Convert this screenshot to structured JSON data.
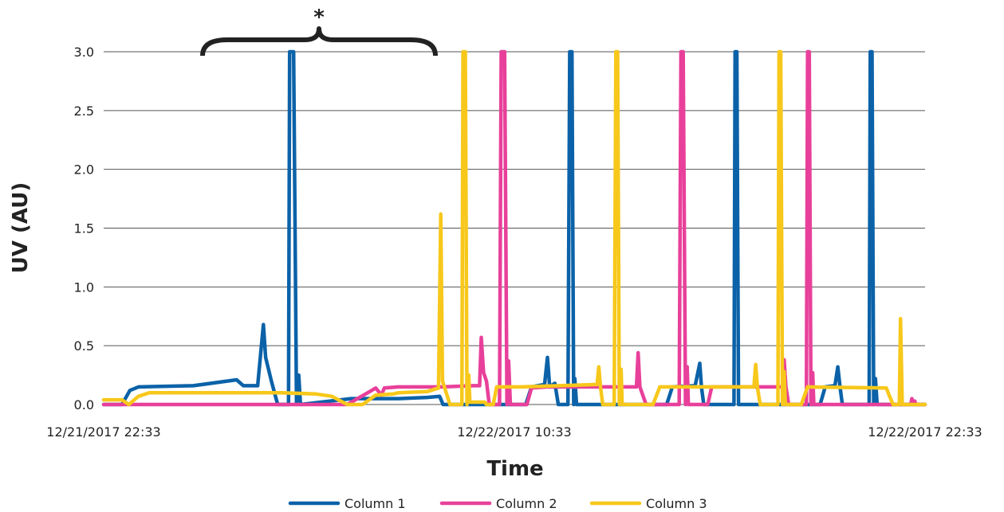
{
  "chart_data": {
    "type": "line",
    "xlabel": "Time",
    "ylabel": "UV (AU)",
    "ylim": [
      0,
      3.0
    ],
    "yticks": [
      "0.0",
      "0.5",
      "1.0",
      "1.5",
      "2.0",
      "2.5",
      "3.0"
    ],
    "xlim": [
      "12/21/2017 22:33",
      "12/22/2017 22:33"
    ],
    "xticks": [
      "12/21/2017 22:33",
      "12/22/2017 10:33",
      "12/22/2017 22:33"
    ],
    "grid": true,
    "legend_position": "bottom",
    "annotation": "*",
    "series": [
      {
        "name": "Column 1",
        "color": "#0b62a8",
        "points": [
          [
            "12/21/2017 22:33",
            0.0
          ],
          [
            "12/21/2017 23:05",
            0.0
          ],
          [
            "12/21/2017 23:19",
            0.12
          ],
          [
            "12/21/2017 23:34",
            0.15
          ],
          [
            "12/22/2017 01:10",
            0.16
          ],
          [
            "12/22/2017 02:26",
            0.21
          ],
          [
            "12/22/2017 02:38",
            0.16
          ],
          [
            "12/22/2017 03:03",
            0.16
          ],
          [
            "12/22/2017 03:13",
            0.68
          ],
          [
            "12/22/2017 03:17",
            0.4
          ],
          [
            "12/22/2017 03:27",
            0.2
          ],
          [
            "12/22/2017 03:38",
            0.0
          ],
          [
            "12/22/2017 03:57",
            0.0
          ],
          [
            "12/22/2017 03:59",
            3.0
          ],
          [
            "12/22/2017 04:06",
            3.0
          ],
          [
            "12/22/2017 04:11",
            0.0
          ],
          [
            "12/22/2017 04:15",
            0.25
          ],
          [
            "12/22/2017 04:18",
            0.0
          ],
          [
            "12/22/2017 05:11",
            0.03
          ],
          [
            "12/22/2017 05:47",
            0.05
          ],
          [
            "12/22/2017 07:10",
            0.05
          ],
          [
            "12/22/2017 08:00",
            0.06
          ],
          [
            "12/22/2017 08:22",
            0.07
          ],
          [
            "12/22/2017 08:28",
            0.0
          ],
          [
            "12/22/2017 10:53",
            0.0
          ],
          [
            "12/22/2017 11:03",
            0.15
          ],
          [
            "12/22/2017 11:26",
            0.17
          ],
          [
            "12/22/2017 11:31",
            0.4
          ],
          [
            "12/22/2017 11:35",
            0.15
          ],
          [
            "12/22/2017 11:44",
            0.18
          ],
          [
            "12/22/2017 11:50",
            0.0
          ],
          [
            "12/22/2017 12:07",
            0.0
          ],
          [
            "12/22/2017 12:10",
            3.0
          ],
          [
            "12/22/2017 12:14",
            3.0
          ],
          [
            "12/22/2017 12:17",
            0.0
          ],
          [
            "12/22/2017 12:19",
            0.22
          ],
          [
            "12/22/2017 12:22",
            0.0
          ],
          [
            "12/22/2017 15:00",
            0.0
          ],
          [
            "12/22/2017 15:10",
            0.15
          ],
          [
            "12/22/2017 15:50",
            0.16
          ],
          [
            "12/22/2017 15:58",
            0.35
          ],
          [
            "12/22/2017 16:01",
            0.15
          ],
          [
            "12/22/2017 16:05",
            0.0
          ],
          [
            "12/22/2017 16:58",
            0.0
          ],
          [
            "12/22/2017 17:00",
            3.0
          ],
          [
            "12/22/2017 17:03",
            3.0
          ],
          [
            "12/22/2017 17:06",
            0.0
          ],
          [
            "12/22/2017 19:29",
            0.0
          ],
          [
            "12/22/2017 19:38",
            0.15
          ],
          [
            "12/22/2017 19:55",
            0.16
          ],
          [
            "12/22/2017 20:00",
            0.32
          ],
          [
            "12/22/2017 20:04",
            0.15
          ],
          [
            "12/22/2017 20:08",
            0.0
          ],
          [
            "12/22/2017 20:55",
            0.0
          ],
          [
            "12/22/2017 20:57",
            3.0
          ],
          [
            "12/22/2017 21:00",
            3.0
          ],
          [
            "12/22/2017 21:03",
            0.0
          ],
          [
            "12/22/2017 21:06",
            0.22
          ],
          [
            "12/22/2017 21:09",
            0.0
          ],
          [
            "12/22/2017 22:33",
            0.0
          ]
        ]
      },
      {
        "name": "Column 2",
        "color": "#e8409a",
        "points": [
          [
            "12/21/2017 22:33",
            0.0
          ],
          [
            "12/22/2017 05:40",
            0.0
          ],
          [
            "12/22/2017 06:16",
            0.1
          ],
          [
            "12/22/2017 06:30",
            0.14
          ],
          [
            "12/22/2017 06:40",
            0.08
          ],
          [
            "12/22/2017 06:45",
            0.14
          ],
          [
            "12/22/2017 07:10",
            0.15
          ],
          [
            "12/22/2017 08:27",
            0.15
          ],
          [
            "12/22/2017 09:20",
            0.16
          ],
          [
            "12/22/2017 09:32",
            0.16
          ],
          [
            "12/22/2017 09:35",
            0.57
          ],
          [
            "12/22/2017 09:39",
            0.27
          ],
          [
            "12/22/2017 09:44",
            0.2
          ],
          [
            "12/22/2017 09:49",
            0.0
          ],
          [
            "12/22/2017 10:07",
            0.0
          ],
          [
            "12/22/2017 10:10",
            3.0
          ],
          [
            "12/22/2017 10:16",
            3.0
          ],
          [
            "12/22/2017 10:20",
            0.0
          ],
          [
            "12/22/2017 10:23",
            0.37
          ],
          [
            "12/22/2017 10:26",
            0.0
          ],
          [
            "12/22/2017 10:55",
            0.0
          ],
          [
            "12/22/2017 11:03",
            0.14
          ],
          [
            "12/22/2017 11:30",
            0.15
          ],
          [
            "12/22/2017 14:07",
            0.15
          ],
          [
            "12/22/2017 14:10",
            0.44
          ],
          [
            "12/22/2017 14:13",
            0.15
          ],
          [
            "12/22/2017 14:24",
            0.0
          ],
          [
            "12/22/2017 15:22",
            0.0
          ],
          [
            "12/22/2017 15:25",
            3.0
          ],
          [
            "12/22/2017 15:29",
            3.0
          ],
          [
            "12/22/2017 15:33",
            0.0
          ],
          [
            "12/22/2017 15:36",
            0.32
          ],
          [
            "12/22/2017 15:38",
            0.0
          ],
          [
            "12/22/2017 16:12",
            0.0
          ],
          [
            "12/22/2017 16:19",
            0.15
          ],
          [
            "12/22/2017 18:23",
            0.15
          ],
          [
            "12/22/2017 18:26",
            0.38
          ],
          [
            "12/22/2017 18:29",
            0.15
          ],
          [
            "12/22/2017 18:34",
            0.0
          ],
          [
            "12/22/2017 19:05",
            0.0
          ],
          [
            "12/22/2017 19:07",
            3.0
          ],
          [
            "12/22/2017 19:10",
            3.0
          ],
          [
            "12/22/2017 19:13",
            0.0
          ],
          [
            "12/22/2017 19:16",
            0.27
          ],
          [
            "12/22/2017 19:18",
            0.0
          ],
          [
            "12/22/2017 22:08",
            0.0
          ],
          [
            "12/22/2017 22:10",
            0.05
          ],
          [
            "12/22/2017 22:12",
            0.0
          ],
          [
            "12/22/2017 22:15",
            0.03
          ],
          [
            "12/22/2017 22:17",
            0.0
          ],
          [
            "12/22/2017 22:33",
            0.0
          ]
        ]
      },
      {
        "name": "Column 3",
        "color": "#f7c81b",
        "points": [
          [
            "12/21/2017 22:33",
            0.04
          ],
          [
            "12/21/2017 23:05",
            0.04
          ],
          [
            "12/21/2017 23:17",
            0.0
          ],
          [
            "12/21/2017 23:34",
            0.07
          ],
          [
            "12/21/2017 23:53",
            0.1
          ],
          [
            "12/22/2017 02:38",
            0.1
          ],
          [
            "12/22/2017 03:45",
            0.1
          ],
          [
            "12/22/2017 04:44",
            0.09
          ],
          [
            "12/22/2017 05:13",
            0.07
          ],
          [
            "12/22/2017 05:40",
            0.0
          ],
          [
            "12/22/2017 06:07",
            0.0
          ],
          [
            "12/22/2017 06:30",
            0.08
          ],
          [
            "12/22/2017 07:01",
            0.09
          ],
          [
            "12/22/2017 07:10",
            0.1
          ],
          [
            "12/22/2017 08:00",
            0.11
          ],
          [
            "12/22/2017 08:20",
            0.14
          ],
          [
            "12/22/2017 08:24",
            1.62
          ],
          [
            "12/22/2017 08:27",
            0.2
          ],
          [
            "12/22/2017 08:40",
            0.0
          ],
          [
            "12/22/2017 09:01",
            0.0
          ],
          [
            "12/22/2017 09:03",
            3.0
          ],
          [
            "12/22/2017 09:07",
            3.0
          ],
          [
            "12/22/2017 09:10",
            0.0
          ],
          [
            "12/22/2017 09:13",
            0.25
          ],
          [
            "12/22/2017 09:15",
            0.02
          ],
          [
            "12/22/2017 09:41",
            0.02
          ],
          [
            "12/22/2017 09:44",
            0.0
          ],
          [
            "12/22/2017 09:56",
            0.0
          ],
          [
            "12/22/2017 10:02",
            0.15
          ],
          [
            "12/22/2017 10:45",
            0.15
          ],
          [
            "12/22/2017 12:58",
            0.17
          ],
          [
            "12/22/2017 13:01",
            0.32
          ],
          [
            "12/22/2017 13:04",
            0.15
          ],
          [
            "12/22/2017 13:08",
            0.0
          ],
          [
            "12/22/2017 13:28",
            0.0
          ],
          [
            "12/22/2017 13:31",
            3.0
          ],
          [
            "12/22/2017 13:34",
            3.0
          ],
          [
            "12/22/2017 13:37",
            0.0
          ],
          [
            "12/22/2017 13:40",
            0.3
          ],
          [
            "12/22/2017 13:42",
            0.0
          ],
          [
            "12/22/2017 14:36",
            0.0
          ],
          [
            "12/22/2017 14:48",
            0.15
          ],
          [
            "12/22/2017 17:33",
            0.15
          ],
          [
            "12/22/2017 17:36",
            0.34
          ],
          [
            "12/22/2017 17:39",
            0.15
          ],
          [
            "12/22/2017 17:44",
            0.0
          ],
          [
            "12/22/2017 18:15",
            0.0
          ],
          [
            "12/22/2017 18:17",
            3.0
          ],
          [
            "12/22/2017 18:20",
            3.0
          ],
          [
            "12/22/2017 18:23",
            0.0
          ],
          [
            "12/22/2017 18:26",
            0.28
          ],
          [
            "12/22/2017 18:28",
            0.0
          ],
          [
            "12/22/2017 18:56",
            0.0
          ],
          [
            "12/22/2017 19:07",
            0.15
          ],
          [
            "12/22/2017 21:25",
            0.14
          ],
          [
            "12/22/2017 21:30",
            0.08
          ],
          [
            "12/22/2017 21:37",
            0.0
          ],
          [
            "12/22/2017 21:48",
            0.0
          ],
          [
            "12/22/2017 21:50",
            0.73
          ],
          [
            "12/22/2017 21:53",
            0.0
          ],
          [
            "12/22/2017 22:33",
            0.0
          ]
        ]
      }
    ]
  }
}
